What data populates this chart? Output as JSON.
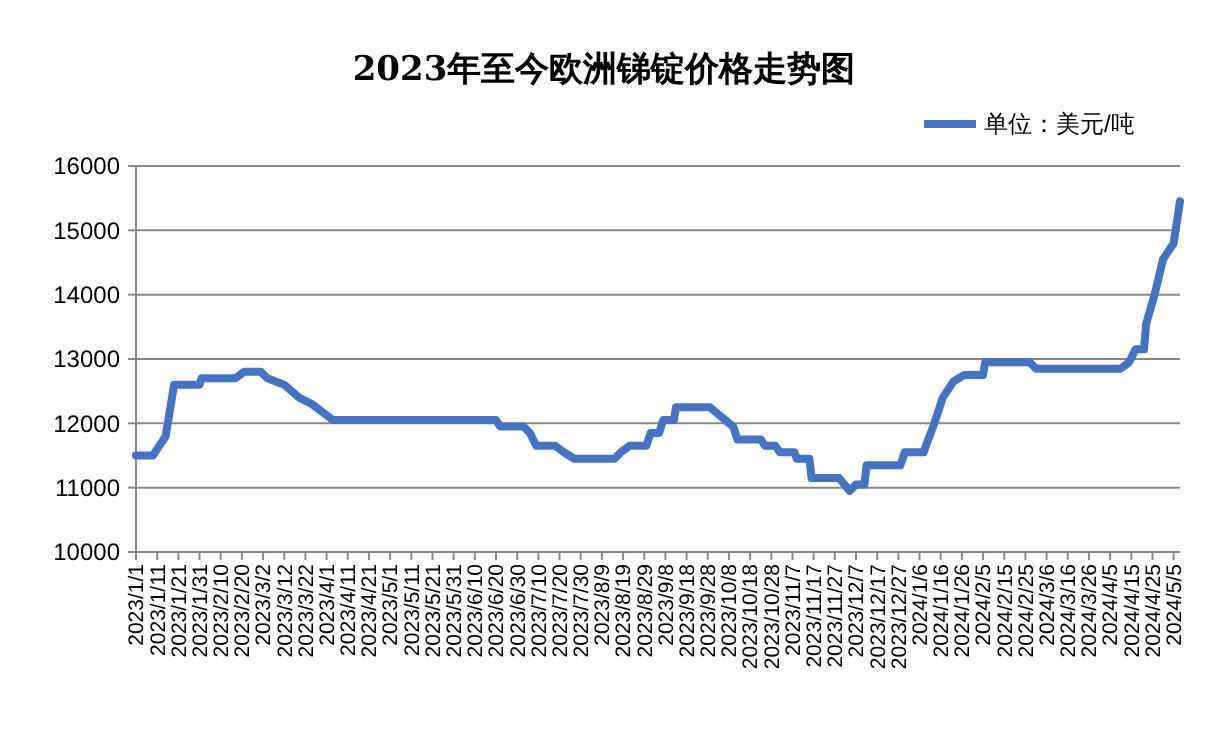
{
  "chart_data": {
    "type": "line",
    "title": "2023年至今欧洲锑锭价格走势图",
    "x": [
      "2023-01-01",
      "2023-01-09",
      "2023-01-12",
      "2023-01-15",
      "2023-01-19",
      "2023-01-31",
      "2023-02-01",
      "2023-02-17",
      "2023-02-21",
      "2023-03-01",
      "2023-03-04",
      "2023-03-12",
      "2023-03-19",
      "2023-03-25",
      "2023-03-31",
      "2023-04-04",
      "2023-06-20",
      "2023-06-22",
      "2023-07-03",
      "2023-07-06",
      "2023-07-09",
      "2023-07-18",
      "2023-07-22",
      "2023-07-27",
      "2023-08-15",
      "2023-08-18",
      "2023-08-22",
      "2023-08-30",
      "2023-09-01",
      "2023-09-05",
      "2023-09-07",
      "2023-09-12",
      "2023-09-13",
      "2023-09-29",
      "2023-10-10",
      "2023-10-12",
      "2023-10-23",
      "2023-10-25",
      "2023-10-30",
      "2023-11-01",
      "2023-11-08",
      "2023-11-09",
      "2023-11-15",
      "2023-11-16",
      "2023-11-29",
      "2023-12-04",
      "2023-12-07",
      "2023-12-11",
      "2023-12-12",
      "2023-12-28",
      "2023-12-30",
      "2024-01-08",
      "2024-01-09",
      "2024-01-13",
      "2024-01-17",
      "2024-01-22",
      "2024-01-27",
      "2024-02-05",
      "2024-02-06",
      "2024-02-27",
      "2024-03-01",
      "2024-04-10",
      "2024-04-14",
      "2024-04-17",
      "2024-04-21",
      "2024-04-22",
      "2024-04-26",
      "2024-04-30",
      "2024-05-05",
      "2024-05-08"
    ],
    "series": [
      {
        "name": "单位：美元/吨",
        "color": "#4472c4",
        "values": [
          11500,
          11500,
          11650,
          11800,
          12600,
          12600,
          12700,
          12700,
          12800,
          12800,
          12700,
          12600,
          12400,
          12300,
          12150,
          12050,
          12050,
          11950,
          11950,
          11850,
          11650,
          11650,
          11550,
          11450,
          11450,
          11550,
          11650,
          11650,
          11850,
          11850,
          12050,
          12050,
          12250,
          12250,
          11950,
          11750,
          11750,
          11650,
          11650,
          11550,
          11550,
          11450,
          11450,
          11150,
          11150,
          10950,
          11050,
          11050,
          11350,
          11350,
          11550,
          11550,
          11650,
          12000,
          12400,
          12650,
          12750,
          12750,
          12950,
          12950,
          12850,
          12850,
          12950,
          13150,
          13150,
          13550,
          14000,
          14550,
          14800,
          15450
        ]
      }
    ],
    "xlim": [
      "2023-01-01",
      "2024-05-08"
    ],
    "xticks": [
      {
        "value": "2023-01-01",
        "label": "2023/1/1"
      },
      {
        "value": "2023-01-11",
        "label": "2023/1/11"
      },
      {
        "value": "2023-01-21",
        "label": "2023/1/21"
      },
      {
        "value": "2023-01-31",
        "label": "2023/1/31"
      },
      {
        "value": "2023-02-10",
        "label": "2023/2/10"
      },
      {
        "value": "2023-02-20",
        "label": "2023/2/20"
      },
      {
        "value": "2023-03-02",
        "label": "2023/3/2"
      },
      {
        "value": "2023-03-12",
        "label": "2023/3/12"
      },
      {
        "value": "2023-03-22",
        "label": "2023/3/22"
      },
      {
        "value": "2023-04-01",
        "label": "2023/4/1"
      },
      {
        "value": "2023-04-11",
        "label": "2023/4/11"
      },
      {
        "value": "2023-04-21",
        "label": "2023/4/21"
      },
      {
        "value": "2023-05-01",
        "label": "2023/5/1"
      },
      {
        "value": "2023-05-11",
        "label": "2023/5/11"
      },
      {
        "value": "2023-05-21",
        "label": "2023/5/21"
      },
      {
        "value": "2023-05-31",
        "label": "2023/5/31"
      },
      {
        "value": "2023-06-10",
        "label": "2023/6/10"
      },
      {
        "value": "2023-06-20",
        "label": "2023/6/20"
      },
      {
        "value": "2023-06-30",
        "label": "2023/6/30"
      },
      {
        "value": "2023-07-10",
        "label": "2023/7/10"
      },
      {
        "value": "2023-07-20",
        "label": "2023/7/20"
      },
      {
        "value": "2023-07-30",
        "label": "2023/7/30"
      },
      {
        "value": "2023-08-09",
        "label": "2023/8/9"
      },
      {
        "value": "2023-08-19",
        "label": "2023/8/19"
      },
      {
        "value": "2023-08-29",
        "label": "2023/8/29"
      },
      {
        "value": "2023-09-08",
        "label": "2023/9/8"
      },
      {
        "value": "2023-09-18",
        "label": "2023/9/18"
      },
      {
        "value": "2023-09-28",
        "label": "2023/9/28"
      },
      {
        "value": "2023-10-08",
        "label": "2023/10/8"
      },
      {
        "value": "2023-10-18",
        "label": "2023/10/18"
      },
      {
        "value": "2023-10-28",
        "label": "2023/10/28"
      },
      {
        "value": "2023-11-07",
        "label": "2023/11/7"
      },
      {
        "value": "2023-11-17",
        "label": "2023/11/17"
      },
      {
        "value": "2023-11-27",
        "label": "2023/11/27"
      },
      {
        "value": "2023-12-07",
        "label": "2023/12/7"
      },
      {
        "value": "2023-12-17",
        "label": "2023/12/17"
      },
      {
        "value": "2023-12-27",
        "label": "2023/12/27"
      },
      {
        "value": "2024-01-06",
        "label": "2024/1/6"
      },
      {
        "value": "2024-01-16",
        "label": "2024/1/16"
      },
      {
        "value": "2024-01-26",
        "label": "2024/1/26"
      },
      {
        "value": "2024-02-05",
        "label": "2024/2/5"
      },
      {
        "value": "2024-02-15",
        "label": "2024/2/15"
      },
      {
        "value": "2024-02-25",
        "label": "2024/2/25"
      },
      {
        "value": "2024-03-06",
        "label": "2024/3/6"
      },
      {
        "value": "2024-03-16",
        "label": "2024/3/16"
      },
      {
        "value": "2024-03-26",
        "label": "2024/3/26"
      },
      {
        "value": "2024-04-05",
        "label": "2024/4/5"
      },
      {
        "value": "2024-04-15",
        "label": "2024/4/15"
      },
      {
        "value": "2024-04-25",
        "label": "2024/4/25"
      },
      {
        "value": "2024-05-05",
        "label": "2024/5/5"
      }
    ],
    "ylim": [
      10000,
      16000
    ],
    "yticks": [
      10000,
      11000,
      12000,
      13000,
      14000,
      15000,
      16000
    ],
    "grid": "y",
    "legend": "top right",
    "marker": "none",
    "line_style": "solid"
  }
}
